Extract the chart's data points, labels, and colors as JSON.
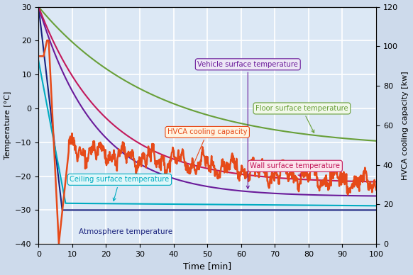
{
  "title": "",
  "xlabel": "Time [min]",
  "ylabel_left": "Temperature [°C]",
  "ylabel_right": "HVCA cooling capacity [kw]",
  "xlim": [
    0,
    100
  ],
  "ylim_left": [
    -40,
    30
  ],
  "ylim_right": [
    0,
    120
  ],
  "background_color": "#cddaeb",
  "plot_background": "#dce8f5",
  "grid_color": "#ffffff",
  "atm_color": "#1a237e",
  "vehicle_color": "#6a1b9a",
  "floor_color": "#689f38",
  "ceiling_color": "#00acc1",
  "wall_color": "#c2185b",
  "hvca_color": "#e64a19",
  "atm_label": "Atmosphere temperature",
  "vehicle_label": "Vehicle surface temperature",
  "floor_label": "Floor surface temperature",
  "ceiling_label": "Ceiling surface temperature",
  "wall_label": "Wall surface temperature",
  "hvca_label": "HVCA cooling capacity",
  "vehicle_box_fc": "#ede7f6",
  "floor_box_fc": "#f1f8e9",
  "ceiling_box_fc": "#e0f7fa",
  "wall_box_fc": "#fce4ec",
  "hvca_box_fc": "#fff3e0"
}
